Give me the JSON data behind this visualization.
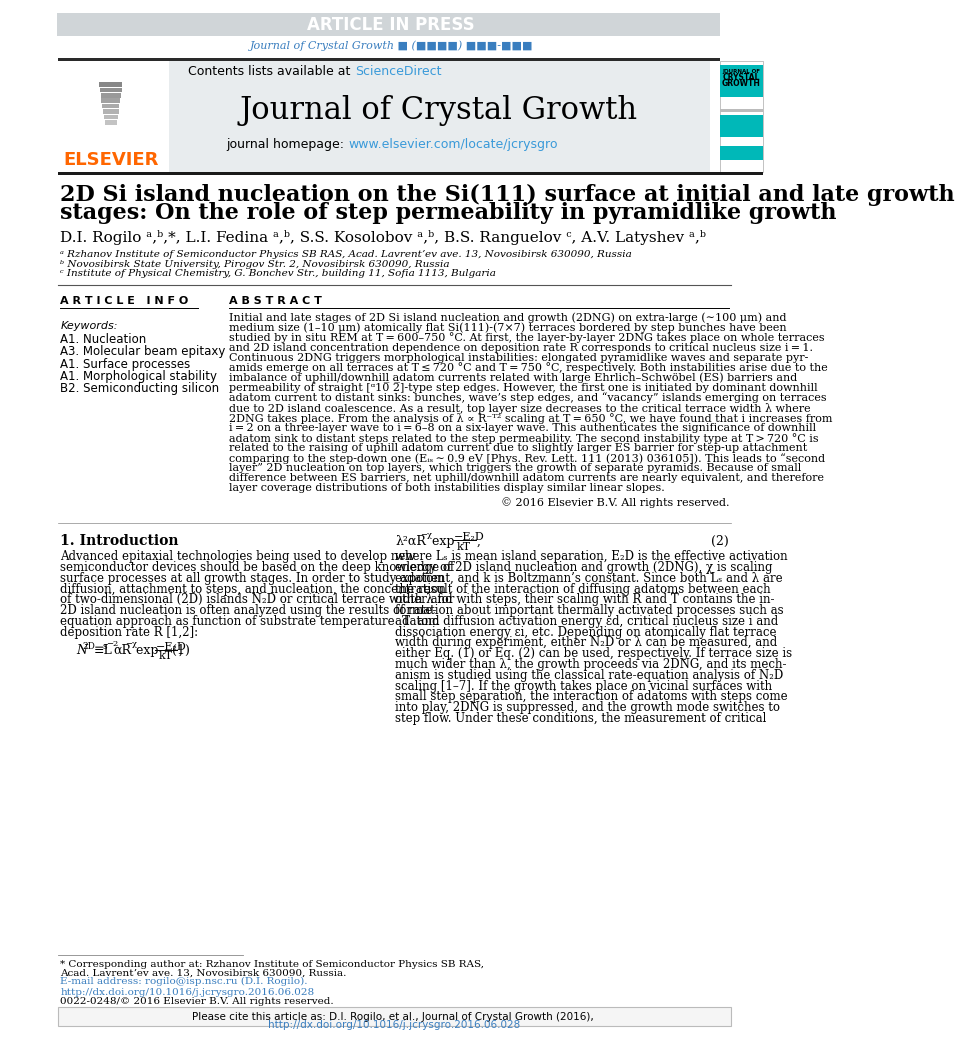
{
  "article_in_press_text": "ARTICLE IN PRESS",
  "article_in_press_bg": "#d0d5d8",
  "article_in_press_color": "#ffffff",
  "journal_ref_text": "Journal of Crystal Growth ■ (■■■■) ■■■-■■■",
  "journal_ref_color": "#3a7ebf",
  "sciencedirect_color": "#3a9ad9",
  "journal_title": "Journal of Crystal Growth",
  "journal_url": "www.elsevier.com/locate/jcrysgro",
  "journal_url_color": "#3a9ad9",
  "header_bg": "#e8ecee",
  "paper_title_line1": "2D Si island nucleation on the Si(111) surface at initial and late growth",
  "paper_title_line2": "stages: On the role of step permeability in pyramidlike growth",
  "authors": "D.I. Rogilo ᵃ,ᵇ,*, L.I. Fedina ᵃ,ᵇ, S.S. Kosolobov ᵃ,ᵇ, B.S. Ranguelov ᶜ, A.V. Latyshev ᵃ,ᵇ",
  "affil_a": "ᵃ Rzhanov Institute of Semiconductor Physics SB RAS, Acad. Lavrentʼev ave. 13, Novosibirsk 630090, Russia",
  "affil_b": "ᵇ Novosibirsk State University, Pirogov Str. 2, Novosibirsk 630090, Russia",
  "affil_c": "ᶜ Institute of Physical Chemistry, G. Bonchev Str., building 11, Sofia 1113, Bulgaria",
  "article_info_header": "A R T I C L E   I N F O",
  "abstract_header": "A B S T R A C T",
  "keywords_label": "Keywords:",
  "keywords": [
    "A1. Nucleation",
    "A3. Molecular beam epitaxy",
    "A1. Surface processes",
    "A1. Morphological stability",
    "B2. Semiconducting silicon"
  ],
  "copyright_text": "© 2016 Elsevier B.V. All rights reserved.",
  "section1_header": "1. Introduction",
  "cite_footer_url": "http://dx.doi.org/10.1016/j.jcrysgro.2016.06.028",
  "elsevier_color": "#ff6600",
  "teal_color": "#00b8b8",
  "abstract_lines": [
    "Initial and late stages of 2D Si island nucleation and growth (2DNG) on extra-large (∼100 μm) and",
    "medium size (1–10 μm) atomically flat Si(111)-(7×7) terraces bordered by step bunches have been",
    "studied by in situ REM at T = 600–750 °C. At first, the layer-by-layer 2DNG takes place on whole terraces",
    "and 2D island concentration dependence on deposition rate R corresponds to critical nucleus size i = 1.",
    "Continuous 2DNG triggers morphological instabilities: elongated pyramidlike waves and separate pyr-",
    "amids emerge on all terraces at T ≤ 720 °C and T = 750 °C, respectively. Both instabilities arise due to the",
    "imbalance of uphill/downhill adatom currents related with large Ehrlich–Schwöbel (ES) barriers and",
    "permeability of straight [ᵅ10̅ 2̅]-type step edges. However, the first one is initiated by dominant downhill",
    "adatom current to distant sinks: bunches, wave’s step edges, and “vacancy” islands emerging on terraces",
    "due to 2D island coalescence. As a result, top layer size decreases to the critical terrace width λ where",
    "2DNG takes place. From the analysis of λ ∝ R⁻ᵀ² scaling at T = 650 °C, we have found that i increases from",
    "i = 2 on a three-layer wave to i = 6–8 on a six-layer wave. This authenticates the significance of downhill",
    "adatom sink to distant steps related to the step permeability. The second instability type at T > 720 °C is",
    "related to the raising of uphill adatom current due to slightly larger ES barrier for step-up attachment",
    "comparing to the step-down one (Eᵢₛ ∼ 0.9 eV [Phys. Rev. Lett. 111 (2013) 036105]). This leads to “second",
    "layer” 2D nucleation on top layers, which triggers the growth of separate pyramids. Because of small",
    "difference between ES barriers, net uphill/downhill adatom currents are nearly equivalent, and therefore",
    "layer coverage distributions of both instabilities display similar linear slopes."
  ],
  "intro_col1_lines": [
    "Advanced epitaxial technologies being used to develop new",
    "semiconductor devices should be based on the deep knowledge of",
    "surface processes at all growth stages. In order to study adatom",
    "diffusion, attachment to steps, and nucleation, the concentration",
    "of two-dimensional (2D) islands N₂D or critical terrace width λ for",
    "2D island nucleation is often analyzed using the results of rate-",
    "equation approach as function of substrate temperature  T  and",
    "deposition rate R [1,2]:"
  ],
  "intro_col2_lines": [
    "where Lₛ is mean island separation, E₂D is the effective activation",
    "energy of 2D island nucleation and growth (2DNG), χ is scaling",
    "exponent, and k is Boltzmann’s constant. Since both Lₛ and λ are",
    "the result of the interaction of diffusing adatoms between each",
    "other and with steps, their scaling with R and T contains the in-",
    "formation about important thermally activated processes such as",
    "adatom diffusion activation energy εd, critical nucleus size i and",
    "dissociation energy εi, etc. Depending on atomically flat terrace",
    "width during experiment, either N₂D or λ can be measured, and",
    "either Eq. (1) or Eq. (2) can be used, respectively. If terrace size is",
    "much wider than λ, the growth proceeds via 2DNG, and its mech-",
    "anism is studied using the classical rate-equation analysis of N₂D",
    "scaling [1–7]. If the growth takes place on vicinal surfaces with",
    "small step separation, the interaction of adatoms with steps come",
    "into play, 2DNG is suppressed, and the growth mode switches to",
    "step flow. Under these conditions, the measurement of critical"
  ]
}
